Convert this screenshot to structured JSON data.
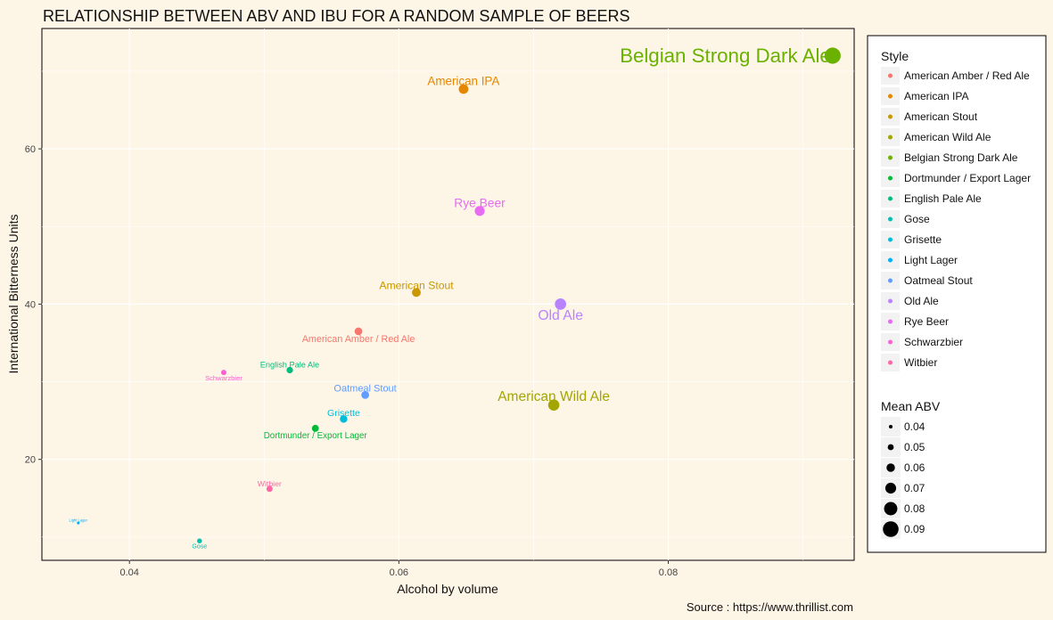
{
  "chart_data": {
    "type": "scatter",
    "title": "RELATIONSHIP BETWEEN ABV AND IBU FOR A RANDOM SAMPLE OF BEERS",
    "xlabel": "Alcohol by volume",
    "ylabel": "International Bitterness Units",
    "caption": "Source : https://www.thrillist.com",
    "xlim": [
      0.0335,
      0.0938
    ],
    "ylim": [
      7.0,
      75.5
    ],
    "x_ticks": [
      0.04,
      0.06,
      0.08
    ],
    "x_tick_labels": [
      "0.04",
      "0.06",
      "0.08"
    ],
    "y_ticks": [
      20,
      40,
      60
    ],
    "y_tick_labels": [
      "20",
      "40",
      "60"
    ],
    "grid": true,
    "legend_position": "right",
    "color_legend": {
      "title": "Style",
      "items": [
        {
          "label": "American Amber / Red Ale",
          "color": "#F8766D"
        },
        {
          "label": "American IPA",
          "color": "#E58700"
        },
        {
          "label": "American Stout",
          "color": "#C99800"
        },
        {
          "label": "American Wild Ale",
          "color": "#A3A500"
        },
        {
          "label": "Belgian Strong Dark Ale",
          "color": "#6BB100"
        },
        {
          "label": "Dortmunder / Export Lager",
          "color": "#00BA38"
        },
        {
          "label": "English Pale Ale",
          "color": "#00BF7D"
        },
        {
          "label": "Gose",
          "color": "#00C0AF"
        },
        {
          "label": "Grisette",
          "color": "#00BCD8"
        },
        {
          "label": "Light Lager",
          "color": "#00B0F6"
        },
        {
          "label": "Oatmeal Stout",
          "color": "#619CFF"
        },
        {
          "label": "Old Ale",
          "color": "#B983FF"
        },
        {
          "label": "Rye Beer",
          "color": "#E76BF3"
        },
        {
          "label": "Schwarzbier",
          "color": "#FD61D1"
        },
        {
          "label": "Witbier",
          "color": "#FF67A4"
        }
      ]
    },
    "size_legend": {
      "title": "Mean ABV",
      "items": [
        {
          "label": "0.04",
          "value": 0.04
        },
        {
          "label": "0.05",
          "value": 0.05
        },
        {
          "label": "0.06",
          "value": 0.06
        },
        {
          "label": "0.07",
          "value": 0.07
        },
        {
          "label": "0.08",
          "value": 0.08
        },
        {
          "label": "0.09",
          "value": 0.09
        }
      ]
    },
    "points": [
      {
        "label": "American Amber / Red Ale",
        "abv": 0.057,
        "ibu": 36.5,
        "color": "#F8766D",
        "label_anchor": "below"
      },
      {
        "label": "American IPA",
        "abv": 0.0648,
        "ibu": 67.7,
        "color": "#E58700",
        "label_anchor": "above"
      },
      {
        "label": "American Stout",
        "abv": 0.0613,
        "ibu": 41.5,
        "color": "#C99800",
        "label_anchor": "above"
      },
      {
        "label": "American Wild Ale",
        "abv": 0.0715,
        "ibu": 27.0,
        "color": "#A3A500",
        "label_anchor": "above"
      },
      {
        "label": "Belgian Strong Dark Ale",
        "abv": 0.0922,
        "ibu": 72.0,
        "color": "#6BB100",
        "label_anchor": "left"
      },
      {
        "label": "Dortmunder / Export Lager",
        "abv": 0.0538,
        "ibu": 24.0,
        "color": "#00BA38",
        "label_anchor": "below"
      },
      {
        "label": "English Pale Ale",
        "abv": 0.0519,
        "ibu": 31.5,
        "color": "#00BF7D",
        "label_anchor": "above"
      },
      {
        "label": "Gose",
        "abv": 0.0452,
        "ibu": 9.5,
        "color": "#00C0AF",
        "label_anchor": "below"
      },
      {
        "label": "Grisette",
        "abv": 0.0559,
        "ibu": 25.2,
        "color": "#00BCD8",
        "label_anchor": "above"
      },
      {
        "label": "Light Lager",
        "abv": 0.0362,
        "ibu": 11.8,
        "color": "#00B0F6",
        "label_anchor": "above"
      },
      {
        "label": "Oatmeal Stout",
        "abv": 0.0575,
        "ibu": 28.3,
        "color": "#619CFF",
        "label_anchor": "above"
      },
      {
        "label": "Old Ale",
        "abv": 0.072,
        "ibu": 40.0,
        "color": "#B983FF",
        "label_anchor": "below"
      },
      {
        "label": "Rye Beer",
        "abv": 0.066,
        "ibu": 52.0,
        "color": "#E76BF3",
        "label_anchor": "above"
      },
      {
        "label": "Schwarzbier",
        "abv": 0.047,
        "ibu": 31.2,
        "color": "#FD61D1",
        "label_anchor": "below"
      },
      {
        "label": "Witbier",
        "abv": 0.0504,
        "ibu": 16.2,
        "color": "#FF67A4",
        "label_anchor": "above"
      }
    ]
  }
}
